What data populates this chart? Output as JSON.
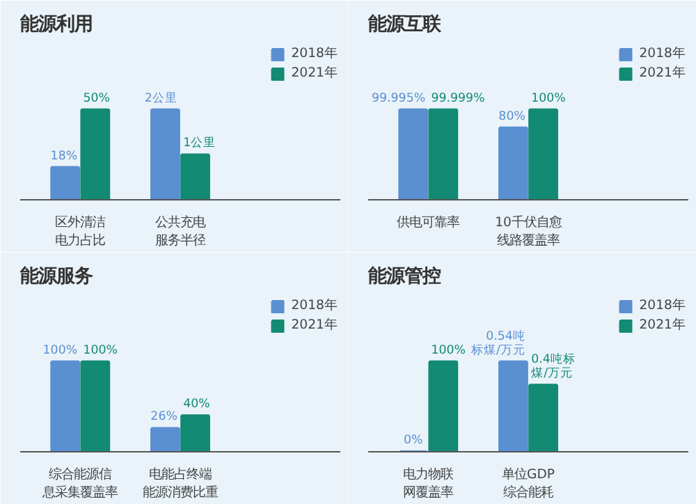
{
  "chart_data": [
    {
      "type": "bar",
      "title": "能源利用",
      "categories": [
        "区外清洁电力占比",
        "公共充电服务半径"
      ],
      "legend": "top right",
      "series": [
        {
          "name": "2018年",
          "color": "#5a8fd2",
          "values": [
            18,
            null
          ],
          "value_labels": [
            "18%",
            null
          ]
        },
        {
          "name": "2021年",
          "color": "#138a74",
          "values": [
            50,
            null
          ],
          "value_labels": [
            "50%",
            null
          ]
        },
        {
          "color": "#5a8fd2",
          "axis": "y2",
          "values": [
            null,
            2
          ],
          "value_labels": [
            null,
            "2公里"
          ]
        },
        {
          "color": "#138a74",
          "axis": "y2",
          "values": [
            null,
            1
          ],
          "value_labels": [
            null,
            "1公里"
          ]
        }
      ]
    },
    {
      "type": "bar",
      "title": "能源互联",
      "categories": [
        "供电可靠率",
        "10千伏自愈线路覆盖率"
      ],
      "legend": "top right",
      "series": [
        {
          "name": "2018年",
          "color": "#5a8fd2",
          "values": [
            99.995,
            80
          ],
          "value_labels": [
            "99.995%",
            "80%"
          ]
        },
        {
          "name": "2021年",
          "color": "#138a74",
          "values": [
            99.999,
            100
          ],
          "value_labels": [
            "99.999%",
            "100%"
          ]
        }
      ]
    },
    {
      "type": "bar",
      "title": "能源服务",
      "categories": [
        "综合能源信息采集覆盖率",
        "电能占终端能源消费比重"
      ],
      "legend": "top right",
      "series": [
        {
          "name": "2018年",
          "color": "#5a8fd2",
          "values": [
            100,
            26
          ],
          "value_labels": [
            "100%",
            "26%"
          ]
        },
        {
          "name": "2021年",
          "color": "#138a74",
          "values": [
            100,
            40
          ],
          "value_labels": [
            "100%",
            "40%"
          ]
        }
      ]
    },
    {
      "type": "bar",
      "title": "能源管控",
      "categories": [
        "电力物联网覆盖率",
        "单位GDP综合能耗"
      ],
      "legend": "top right",
      "series": [
        {
          "name": "2018年",
          "color": "#5a8fd2",
          "values": [
            0,
            null
          ],
          "value_labels": [
            "0%",
            null
          ]
        },
        {
          "name": "2021年",
          "color": "#138a74",
          "values": [
            100,
            null
          ],
          "value_labels": [
            "100%",
            null
          ]
        },
        {
          "color": "#5a8fd2",
          "axis": "y2",
          "values": [
            null,
            0.54
          ],
          "value_labels": [
            null,
            "0.54吨标煤/万元"
          ]
        },
        {
          "color": "#138a74",
          "axis": "y2",
          "values": [
            null,
            0.4
          ],
          "value_labels": [
            null,
            "0.4吨标煤/万元"
          ]
        }
      ]
    }
  ]
}
